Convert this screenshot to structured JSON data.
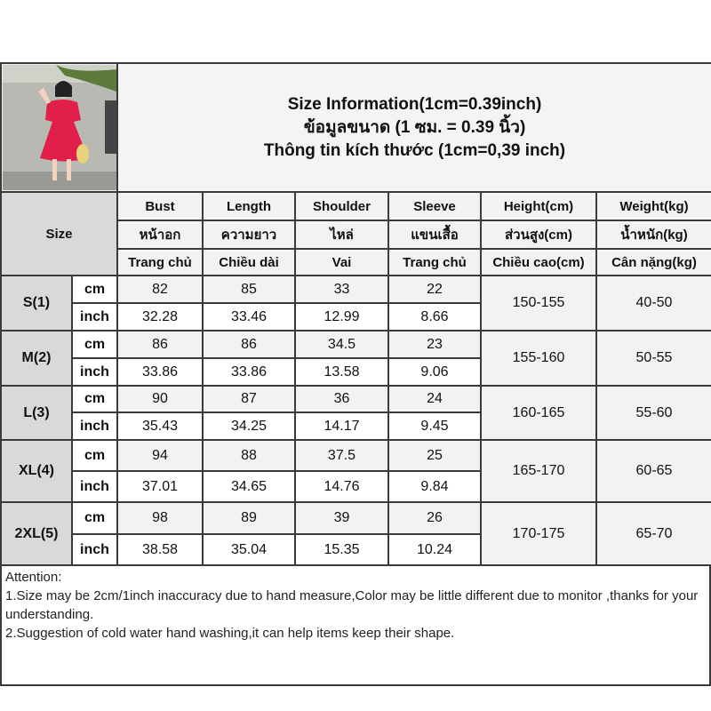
{
  "title_lines": [
    "Size Information(1cm=0.39inch)",
    "ข้อมูลขนาด (1 ซม. = 0.39 นิ้ว)",
    "Thông tin kích thước (1cm=0,39 inch)"
  ],
  "size_label": "Size",
  "columns": [
    {
      "en": "Bust",
      "th": "หน้าอก",
      "vi": "Trang chủ"
    },
    {
      "en": "Length",
      "th": "ความยาว",
      "vi": "Chiều dài"
    },
    {
      "en": "Shoulder",
      "th": "ไหล่",
      "vi": "Vai"
    },
    {
      "en": "Sleeve",
      "th": "แขนเสื้อ",
      "vi": "Trang chủ"
    },
    {
      "en": "Height(cm)",
      "th": "ส่วนสูง(cm)",
      "vi": "Chiều cao(cm)"
    },
    {
      "en": "Weight(kg)",
      "th": "น้ำหนัก(kg)",
      "vi": "Cân nặng(kg)"
    }
  ],
  "units": {
    "cm": "cm",
    "inch": "inch"
  },
  "rows": [
    {
      "size": "S(1)",
      "cm": [
        "82",
        "85",
        "33",
        "22"
      ],
      "inch": [
        "32.28",
        "33.46",
        "12.99",
        "8.66"
      ],
      "height": "150-155",
      "weight": "40-50"
    },
    {
      "size": "M(2)",
      "cm": [
        "86",
        "86",
        "34.5",
        "23"
      ],
      "inch": [
        "33.86",
        "33.86",
        "13.58",
        "9.06"
      ],
      "height": "155-160",
      "weight": "50-55"
    },
    {
      "size": "L(3)",
      "cm": [
        "90",
        "87",
        "36",
        "24"
      ],
      "inch": [
        "35.43",
        "34.25",
        "14.17",
        "9.45"
      ],
      "height": "160-165",
      "weight": "55-60"
    },
    {
      "size": "XL(4)",
      "cm": [
        "94",
        "88",
        "37.5",
        "25"
      ],
      "inch": [
        "37.01",
        "34.65",
        "14.76",
        "9.84"
      ],
      "height": "165-170",
      "weight": "60-65"
    },
    {
      "size": "2XL(5)",
      "cm": [
        "98",
        "89",
        "39",
        "26"
      ],
      "inch": [
        "38.58",
        "35.04",
        "15.35",
        "10.24"
      ],
      "height": "170-175",
      "weight": "65-70"
    }
  ],
  "attention": {
    "heading": "Attention:",
    "note1": "1.Size may be 2cm/1inch inaccuracy due to hand measure,Color may be little different due to monitor ,thanks for your understanding.",
    "note2": "2.Suggestion of cold water hand washing,it can help items keep their shape."
  },
  "colors": {
    "dress": "#e0204a",
    "header_bg": "#f2f2f2",
    "size_bg": "#d9d9d9",
    "border": "#3a3a3a"
  }
}
